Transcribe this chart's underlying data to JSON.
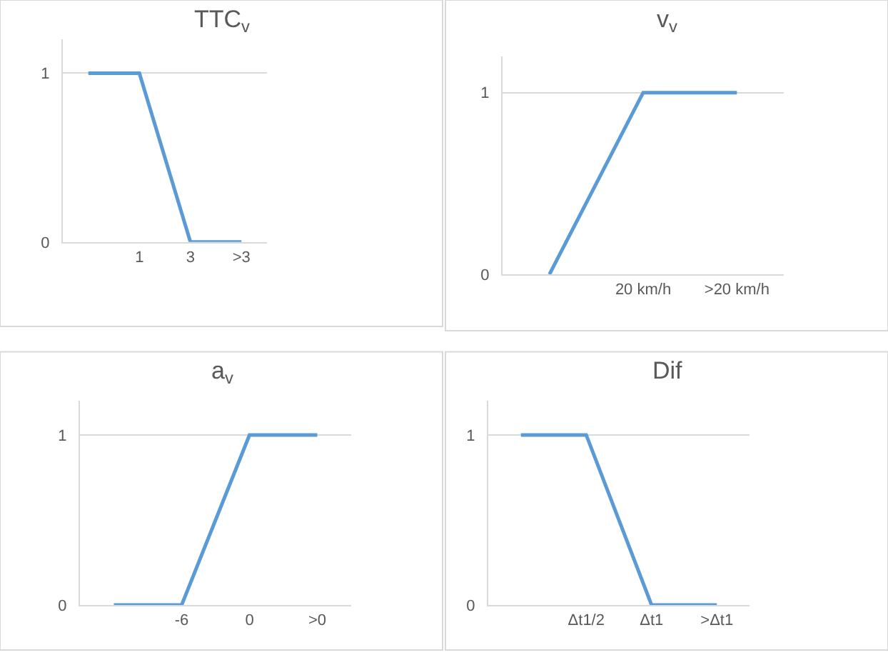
{
  "chart_data": [
    {
      "type": "line",
      "title": "TTC$_{v}$",
      "categories": [
        null,
        "1",
        "3",
        ">3"
      ],
      "values": [
        1,
        1,
        0,
        0
      ],
      "color": "#5b9bd5",
      "ylim": [
        0,
        1.2
      ],
      "yticks": [
        0,
        1
      ],
      "grid": "y"
    },
    {
      "type": "line",
      "title": "v$_{v}$",
      "categories": [
        null,
        "20 km/h",
        ">20 km/h"
      ],
      "values": [
        0,
        1,
        1
      ],
      "color": "#5b9bd5",
      "ylim": [
        0,
        1.2
      ],
      "yticks": [
        0,
        1
      ],
      "grid": "y"
    },
    {
      "type": "line",
      "title": "a$_{v}$",
      "categories": [
        null,
        "-6",
        "0",
        ">0"
      ],
      "values": [
        0,
        0,
        1,
        1
      ],
      "color": "#5b9bd5",
      "ylim": [
        0,
        1.2
      ],
      "yticks": [
        0,
        1
      ],
      "grid": "y"
    },
    {
      "type": "line",
      "title": "Dif",
      "categories": [
        null,
        "Δt1/2",
        "Δt1",
        ">Δt1"
      ],
      "values": [
        1,
        1,
        0,
        0
      ],
      "color": "#5b9bd5",
      "ylim": [
        0,
        1.2
      ],
      "yticks": [
        0,
        1
      ],
      "grid": "y"
    }
  ]
}
